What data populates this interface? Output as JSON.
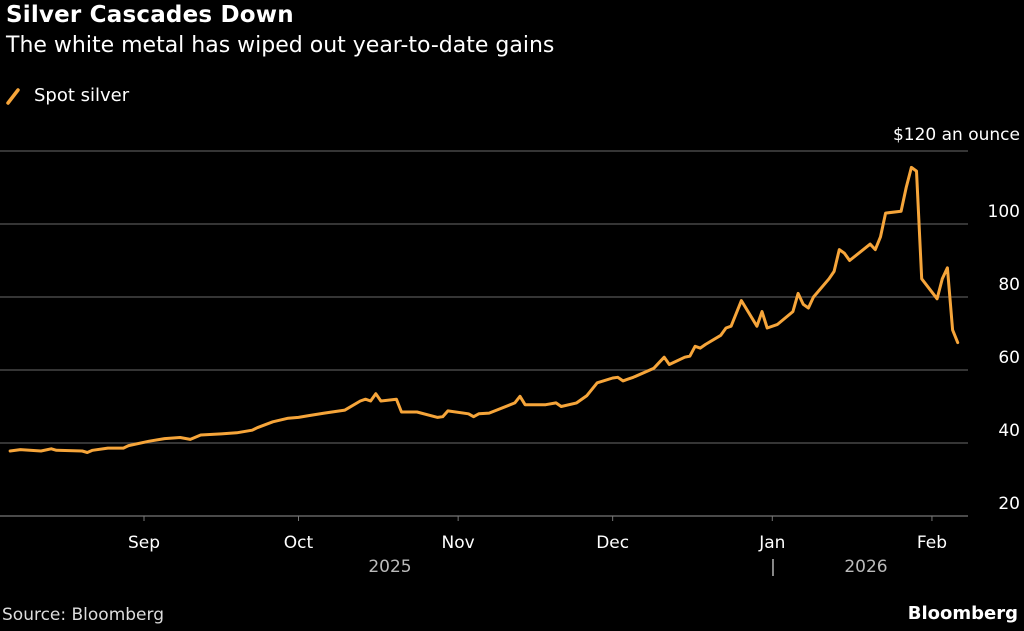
{
  "chart_data": {
    "type": "line",
    "title": "Silver Cascades Down",
    "subtitle": "The white metal has wiped out year-to-date gains",
    "source": "Source: Bloomberg",
    "brand": "Bloomberg",
    "unit_label": "$120 an ounce",
    "ylim": [
      20,
      120
    ],
    "yticks": [
      20,
      40,
      60,
      80,
      100,
      120
    ],
    "ytick_labels": [
      "20",
      "40",
      "60",
      "80",
      "100",
      "$120 an ounce"
    ],
    "xticks": [
      {
        "date": "2025-09-01",
        "label": "Sep"
      },
      {
        "date": "2025-10-01",
        "label": "Oct"
      },
      {
        "date": "2025-11-01",
        "label": "Nov"
      },
      {
        "date": "2025-12-01",
        "label": "Dec"
      },
      {
        "date": "2026-01-01",
        "label": "Jan"
      },
      {
        "date": "2026-02-01",
        "label": "Feb"
      }
    ],
    "year_labels": [
      {
        "label": "2025"
      },
      {
        "label": "|"
      },
      {
        "label": "2026"
      }
    ],
    "grid": true,
    "legend_position": "top-left",
    "series": [
      {
        "name": "Spot silver",
        "color": "#f6a53a",
        "points": [
          [
            "2025-08-06",
            37.8
          ],
          [
            "2025-08-08",
            38.2
          ],
          [
            "2025-08-12",
            37.8
          ],
          [
            "2025-08-14",
            38.4
          ],
          [
            "2025-08-15",
            38.0
          ],
          [
            "2025-08-20",
            37.8
          ],
          [
            "2025-08-21",
            37.4
          ],
          [
            "2025-08-22",
            38.0
          ],
          [
            "2025-08-25",
            38.6
          ],
          [
            "2025-08-28",
            38.6
          ],
          [
            "2025-08-29",
            39.3
          ],
          [
            "2025-09-02",
            40.5
          ],
          [
            "2025-09-05",
            41.2
          ],
          [
            "2025-09-08",
            41.5
          ],
          [
            "2025-09-10",
            41.0
          ],
          [
            "2025-09-12",
            42.2
          ],
          [
            "2025-09-16",
            42.5
          ],
          [
            "2025-09-19",
            42.8
          ],
          [
            "2025-09-22",
            43.5
          ],
          [
            "2025-09-23",
            44.2
          ],
          [
            "2025-09-26",
            45.8
          ],
          [
            "2025-09-29",
            46.8
          ],
          [
            "2025-10-01",
            47.0
          ],
          [
            "2025-10-03",
            47.5
          ],
          [
            "2025-10-06",
            48.2
          ],
          [
            "2025-10-08",
            48.6
          ],
          [
            "2025-10-10",
            49.0
          ],
          [
            "2025-10-13",
            51.5
          ],
          [
            "2025-10-14",
            52.0
          ],
          [
            "2025-10-15",
            51.5
          ],
          [
            "2025-10-16",
            53.5
          ],
          [
            "2025-10-17",
            51.5
          ],
          [
            "2025-10-20",
            52.0
          ],
          [
            "2025-10-21",
            48.5
          ],
          [
            "2025-10-24",
            48.5
          ],
          [
            "2025-10-28",
            47.0
          ],
          [
            "2025-10-29",
            47.2
          ],
          [
            "2025-10-30",
            48.8
          ],
          [
            "2025-11-03",
            48.0
          ],
          [
            "2025-11-04",
            47.2
          ],
          [
            "2025-11-05",
            48.0
          ],
          [
            "2025-11-07",
            48.2
          ],
          [
            "2025-11-12",
            51.0
          ],
          [
            "2025-11-13",
            52.8
          ],
          [
            "2025-11-14",
            50.5
          ],
          [
            "2025-11-18",
            50.5
          ],
          [
            "2025-11-20",
            51.0
          ],
          [
            "2025-11-21",
            50.0
          ],
          [
            "2025-11-24",
            51.0
          ],
          [
            "2025-11-26",
            53.0
          ],
          [
            "2025-11-28",
            56.5
          ],
          [
            "2025-12-01",
            57.8
          ],
          [
            "2025-12-02",
            58.0
          ],
          [
            "2025-12-03",
            57.0
          ],
          [
            "2025-12-04",
            57.5
          ],
          [
            "2025-12-05",
            58.0
          ],
          [
            "2025-12-09",
            60.5
          ],
          [
            "2025-12-10",
            62.0
          ],
          [
            "2025-12-11",
            63.5
          ],
          [
            "2025-12-12",
            61.5
          ],
          [
            "2025-12-15",
            63.5
          ],
          [
            "2025-12-16",
            63.8
          ],
          [
            "2025-12-17",
            66.5
          ],
          [
            "2025-12-18",
            66.0
          ],
          [
            "2025-12-19",
            67.0
          ],
          [
            "2025-12-22",
            69.5
          ],
          [
            "2025-12-23",
            71.5
          ],
          [
            "2025-12-24",
            72.0
          ],
          [
            "2025-12-26",
            79.0
          ],
          [
            "2025-12-29",
            72.0
          ],
          [
            "2025-12-30",
            76.0
          ],
          [
            "2025-12-31",
            71.5
          ],
          [
            "2026-01-02",
            72.5
          ],
          [
            "2026-01-05",
            76.0
          ],
          [
            "2026-01-06",
            81.0
          ],
          [
            "2026-01-07",
            78.0
          ],
          [
            "2026-01-08",
            77.0
          ],
          [
            "2026-01-09",
            80.0
          ],
          [
            "2026-01-12",
            85.0
          ],
          [
            "2026-01-13",
            87.0
          ],
          [
            "2026-01-14",
            93.0
          ],
          [
            "2026-01-15",
            92.0
          ],
          [
            "2026-01-16",
            90.0
          ],
          [
            "2026-01-20",
            94.5
          ],
          [
            "2026-01-21",
            93.0
          ],
          [
            "2026-01-22",
            96.5
          ],
          [
            "2026-01-23",
            103.0
          ],
          [
            "2026-01-26",
            103.5
          ],
          [
            "2026-01-27",
            110.0
          ],
          [
            "2026-01-28",
            115.5
          ],
          [
            "2026-01-29",
            114.5
          ],
          [
            "2026-01-30",
            85.0
          ],
          [
            "2026-02-02",
            79.5
          ],
          [
            "2026-02-03",
            85.0
          ],
          [
            "2026-02-04",
            88.0
          ],
          [
            "2026-02-05",
            71.0
          ],
          [
            "2026-02-06",
            67.5
          ]
        ]
      }
    ]
  }
}
